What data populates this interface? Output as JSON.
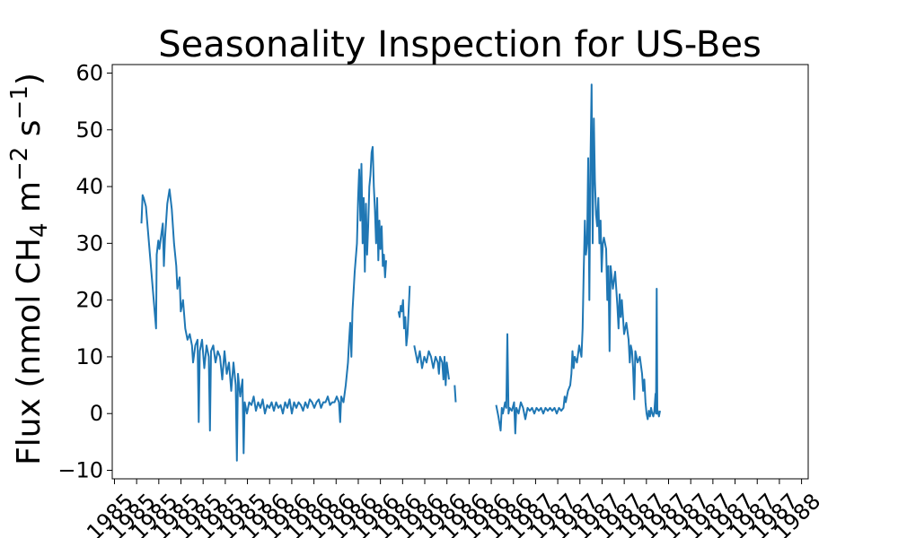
{
  "chart_data": {
    "type": "line",
    "title": "Seasonality Inspection for US-Bes",
    "ylabel_parts": {
      "before": "Flux (nmol CH",
      "sub": "4",
      "mid": " m",
      "sup1": "−2",
      "mid2": " s",
      "sup2": "−1",
      "after": ")"
    },
    "xlabel": "",
    "ylim": [
      -11.5,
      61.5
    ],
    "yticks": [
      -10,
      0,
      10,
      20,
      30,
      40,
      50,
      60
    ],
    "ytick_labels": [
      "−10",
      "0",
      "10",
      "20",
      "30",
      "40",
      "50",
      "60"
    ],
    "xlim": [
      0,
      31
    ],
    "xtick_labels": [
      "1985",
      "1985",
      "1985",
      "1985",
      "1985",
      "1985",
      "1985",
      "1986",
      "1986",
      "1986",
      "1986",
      "1986",
      "1986",
      "1986",
      "1986",
      "1986",
      "1986",
      "1986",
      "1986",
      "1987",
      "1987",
      "1987",
      "1987",
      "1987",
      "1987",
      "1987",
      "1987",
      "1987",
      "1987",
      "1987",
      "1987",
      "1988"
    ],
    "series": [
      {
        "color": "#1f77b4",
        "segments": [
          [
            [
              1.3,
              33.5
            ],
            [
              1.35,
              38.5
            ],
            [
              1.4,
              38.0
            ],
            [
              1.5,
              36.5
            ],
            [
              1.95,
              15
            ],
            [
              1.98,
              28
            ],
            [
              2.05,
              30.5
            ],
            [
              2.1,
              29
            ],
            [
              2.2,
              32
            ],
            [
              2.25,
              33.5
            ],
            [
              2.3,
              26
            ],
            [
              2.35,
              31
            ],
            [
              2.45,
              37
            ],
            [
              2.55,
              39.5
            ],
            [
              2.65,
              36
            ],
            [
              2.75,
              30
            ],
            [
              2.85,
              26
            ],
            [
              2.9,
              22
            ],
            [
              3.0,
              24
            ],
            [
              3.05,
              18
            ],
            [
              3.15,
              20
            ],
            [
              3.25,
              15
            ],
            [
              3.35,
              13
            ],
            [
              3.45,
              14
            ],
            [
              3.55,
              12
            ],
            [
              3.6,
              9
            ],
            [
              3.7,
              12
            ],
            [
              3.8,
              13
            ],
            [
              3.85,
              -1.5
            ],
            [
              3.9,
              11
            ],
            [
              4.0,
              13
            ],
            [
              4.1,
              8
            ],
            [
              4.2,
              12
            ],
            [
              4.3,
              10
            ],
            [
              4.35,
              -3
            ],
            [
              4.4,
              11
            ],
            [
              4.5,
              12
            ],
            [
              4.6,
              9
            ],
            [
              4.7,
              11
            ],
            [
              4.8,
              10
            ],
            [
              4.9,
              6
            ],
            [
              5.0,
              11
            ],
            [
              5.1,
              7
            ],
            [
              5.2,
              9
            ],
            [
              5.3,
              4
            ],
            [
              5.4,
              9
            ],
            [
              5.5,
              5
            ],
            [
              5.55,
              -8.3
            ],
            [
              5.6,
              7
            ],
            [
              5.7,
              3
            ],
            [
              5.8,
              6
            ],
            [
              5.85,
              -7
            ],
            [
              5.9,
              2
            ],
            [
              6.0,
              0
            ],
            [
              6.1,
              2
            ],
            [
              6.2,
              1.5
            ],
            [
              6.3,
              3
            ],
            [
              6.4,
              0.5
            ],
            [
              6.5,
              2
            ],
            [
              6.6,
              1
            ],
            [
              6.7,
              2.5
            ],
            [
              6.8,
              0
            ],
            [
              6.9,
              1.5
            ],
            [
              7.0,
              1
            ],
            [
              7.1,
              2
            ],
            [
              7.2,
              0.5
            ],
            [
              7.3,
              2
            ],
            [
              7.4,
              1
            ],
            [
              7.5,
              1.5
            ],
            [
              7.6,
              0
            ],
            [
              7.7,
              2
            ],
            [
              7.8,
              1
            ],
            [
              7.9,
              2.5
            ],
            [
              8.0,
              0
            ],
            [
              8.1,
              2
            ],
            [
              8.2,
              1
            ],
            [
              8.3,
              2
            ],
            [
              8.4,
              1.5
            ],
            [
              8.5,
              0.5
            ],
            [
              8.6,
              2
            ],
            [
              8.7,
              1
            ],
            [
              8.8,
              2.5
            ],
            [
              8.9,
              2
            ],
            [
              9.0,
              1
            ],
            [
              9.1,
              2
            ],
            [
              9.2,
              2.5
            ],
            [
              9.3,
              1
            ],
            [
              9.4,
              2
            ],
            [
              9.5,
              2
            ],
            [
              9.6,
              3
            ],
            [
              9.7,
              1.5
            ],
            [
              9.8,
              2
            ],
            [
              9.9,
              2
            ],
            [
              10.0,
              3
            ],
            [
              10.1,
              2
            ],
            [
              10.15,
              -1.5
            ],
            [
              10.2,
              3
            ],
            [
              10.3,
              2
            ],
            [
              10.4,
              5
            ],
            [
              10.5,
              9
            ],
            [
              10.55,
              13
            ],
            [
              10.6,
              16
            ],
            [
              10.65,
              10
            ],
            [
              10.7,
              18
            ],
            [
              10.8,
              25
            ],
            [
              10.9,
              30
            ],
            [
              10.95,
              38
            ],
            [
              11.0,
              43
            ],
            [
              11.05,
              34
            ],
            [
              11.1,
              44
            ],
            [
              11.15,
              30
            ],
            [
              11.2,
              38
            ],
            [
              11.25,
              25
            ],
            [
              11.3,
              37
            ],
            [
              11.35,
              28
            ],
            [
              11.4,
              33
            ],
            [
              11.45,
              40
            ],
            [
              11.5,
              42
            ],
            [
              11.55,
              46
            ],
            [
              11.6,
              47
            ],
            [
              11.65,
              40
            ],
            [
              11.7,
              36
            ],
            [
              11.75,
              30
            ],
            [
              11.8,
              38
            ],
            [
              11.85,
              27
            ],
            [
              11.9,
              34
            ],
            [
              11.95,
              29
            ],
            [
              12.0,
              33
            ],
            [
              12.05,
              26
            ],
            [
              12.1,
              28
            ],
            [
              12.15,
              24
            ],
            [
              12.2,
              27
            ]
          ],
          [
            [
              12.75,
              18
            ],
            [
              12.8,
              17
            ],
            [
              12.85,
              19
            ],
            [
              12.9,
              18
            ],
            [
              12.95,
              20
            ],
            [
              13.0,
              15
            ],
            [
              13.05,
              17
            ],
            [
              13.1,
              12
            ],
            [
              13.15,
              14
            ],
            [
              13.2,
              18
            ],
            [
              13.25,
              22.5
            ]
          ],
          [
            [
              13.45,
              12
            ],
            [
              13.5,
              11
            ],
            [
              13.6,
              9
            ],
            [
              13.7,
              11
            ],
            [
              13.8,
              8
            ],
            [
              13.9,
              10
            ],
            [
              14.0,
              9
            ],
            [
              14.1,
              11
            ],
            [
              14.2,
              10
            ],
            [
              14.3,
              8
            ],
            [
              14.4,
              10
            ],
            [
              14.5,
              9
            ],
            [
              14.55,
              7
            ],
            [
              14.6,
              10
            ],
            [
              14.7,
              9
            ],
            [
              14.75,
              6
            ],
            [
              14.8,
              10
            ],
            [
              14.85,
              5
            ],
            [
              14.9,
              9
            ],
            [
              15.0,
              6
            ]
          ],
          [
            [
              15.25,
              5
            ],
            [
              15.3,
              2
            ]
          ],
          [
            [
              17.1,
              1.5
            ],
            [
              17.2,
              -0.5
            ],
            [
              17.3,
              -3
            ],
            [
              17.35,
              1
            ],
            [
              17.4,
              0
            ],
            [
              17.5,
              2
            ],
            [
              17.55,
              1
            ],
            [
              17.6,
              14
            ],
            [
              17.65,
              0
            ],
            [
              17.7,
              1
            ],
            [
              17.8,
              0.5
            ],
            [
              17.9,
              2
            ],
            [
              17.95,
              -3.5
            ],
            [
              18.0,
              1
            ],
            [
              18.1,
              0
            ],
            [
              18.2,
              2
            ],
            [
              18.3,
              1
            ],
            [
              18.4,
              -1
            ],
            [
              18.5,
              1
            ],
            [
              18.6,
              0.5
            ],
            [
              18.7,
              1
            ],
            [
              18.8,
              0
            ],
            [
              18.9,
              1
            ],
            [
              19.0,
              0.5
            ],
            [
              19.1,
              1
            ],
            [
              19.2,
              0
            ],
            [
              19.3,
              1
            ],
            [
              19.4,
              0.5
            ],
            [
              19.5,
              1
            ],
            [
              19.6,
              0.5
            ],
            [
              19.7,
              1
            ],
            [
              19.8,
              0
            ],
            [
              19.9,
              1
            ],
            [
              20.0,
              0.5
            ],
            [
              20.1,
              1
            ],
            [
              20.15,
              3
            ],
            [
              20.2,
              2
            ],
            [
              20.3,
              4
            ],
            [
              20.4,
              5
            ],
            [
              20.45,
              7
            ],
            [
              20.5,
              11
            ],
            [
              20.55,
              8
            ],
            [
              20.6,
              10
            ],
            [
              20.7,
              9
            ],
            [
              20.8,
              12
            ],
            [
              20.9,
              10
            ],
            [
              20.95,
              15
            ],
            [
              21.0,
              25
            ],
            [
              21.05,
              34
            ],
            [
              21.1,
              28
            ],
            [
              21.15,
              30
            ],
            [
              21.2,
              45
            ],
            [
              21.25,
              20
            ],
            [
              21.3,
              44
            ],
            [
              21.35,
              58
            ],
            [
              21.4,
              30
            ],
            [
              21.45,
              52
            ],
            [
              21.5,
              41
            ],
            [
              21.55,
              35
            ],
            [
              21.6,
              33
            ],
            [
              21.65,
              38
            ],
            [
              21.7,
              30
            ],
            [
              21.75,
              34
            ],
            [
              21.8,
              25
            ],
            [
              21.85,
              30
            ],
            [
              21.9,
              31
            ],
            [
              22.0,
              29
            ],
            [
              22.05,
              20
            ],
            [
              22.1,
              26
            ],
            [
              22.15,
              11
            ],
            [
              22.2,
              26
            ],
            [
              22.3,
              22
            ],
            [
              22.4,
              25
            ],
            [
              22.5,
              19
            ],
            [
              22.55,
              15
            ],
            [
              22.6,
              21
            ],
            [
              22.65,
              17
            ],
            [
              22.7,
              20
            ],
            [
              22.8,
              14
            ],
            [
              22.9,
              16
            ],
            [
              23.0,
              13
            ],
            [
              23.05,
              9
            ],
            [
              23.1,
              12
            ],
            [
              23.15,
              11
            ],
            [
              23.2,
              8
            ],
            [
              23.25,
              2.5
            ],
            [
              23.3,
              11
            ],
            [
              23.35,
              10
            ],
            [
              23.4,
              9
            ],
            [
              23.5,
              10
            ],
            [
              23.6,
              7
            ],
            [
              23.65,
              4
            ],
            [
              23.7,
              6
            ],
            [
              23.75,
              2
            ],
            [
              23.8,
              0
            ],
            [
              23.85,
              -1
            ],
            [
              23.9,
              0.5
            ],
            [
              23.95,
              -0.5
            ],
            [
              24.0,
              1
            ],
            [
              24.05,
              0
            ],
            [
              24.1,
              -0.5
            ],
            [
              24.15,
              0.5
            ],
            [
              24.2,
              3.5
            ],
            [
              24.22,
              0
            ],
            [
              24.25,
              22
            ],
            [
              24.28,
              0
            ],
            [
              24.3,
              0.5
            ],
            [
              24.35,
              -0.5
            ],
            [
              24.4,
              0.5
            ]
          ]
        ]
      }
    ]
  }
}
